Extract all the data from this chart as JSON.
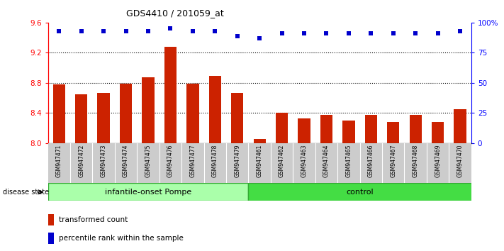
{
  "title": "GDS4410 / 201059_at",
  "categories": [
    "GSM947471",
    "GSM947472",
    "GSM947473",
    "GSM947474",
    "GSM947475",
    "GSM947476",
    "GSM947477",
    "GSM947478",
    "GSM947479",
    "GSM947461",
    "GSM947462",
    "GSM947463",
    "GSM947464",
    "GSM947465",
    "GSM947466",
    "GSM947467",
    "GSM947468",
    "GSM947469",
    "GSM947470"
  ],
  "bar_values": [
    8.78,
    8.65,
    8.67,
    8.79,
    8.87,
    9.28,
    8.79,
    8.89,
    8.67,
    8.05,
    8.4,
    8.33,
    8.37,
    8.3,
    8.37,
    8.28,
    8.37,
    8.28,
    8.45
  ],
  "percentile_values": [
    93,
    93,
    93,
    93,
    93,
    95,
    93,
    93,
    89,
    87,
    91,
    91,
    91,
    91,
    91,
    91,
    91,
    91,
    93
  ],
  "bar_color": "#cc2200",
  "percentile_color": "#0000cc",
  "ylim_left": [
    8.0,
    9.6
  ],
  "ylim_right": [
    0,
    100
  ],
  "yticks_left": [
    8.0,
    8.4,
    8.8,
    9.2,
    9.6
  ],
  "yticks_right": [
    0,
    25,
    50,
    75,
    100
  ],
  "ytick_labels_right": [
    "0",
    "25",
    "50",
    "75",
    "100%"
  ],
  "grid_lines": [
    8.4,
    8.8,
    9.2
  ],
  "group1_label": "infantile-onset Pompe",
  "group2_label": "control",
  "group1_count": 9,
  "group2_count": 10,
  "group1_color": "#aaffaa",
  "group2_color": "#44dd44",
  "disease_state_label": "disease state",
  "legend_bar_label": "transformed count",
  "legend_dot_label": "percentile rank within the sample",
  "percentile_marker_size": 5,
  "bar_bottom": 8.0,
  "bar_width": 0.55
}
